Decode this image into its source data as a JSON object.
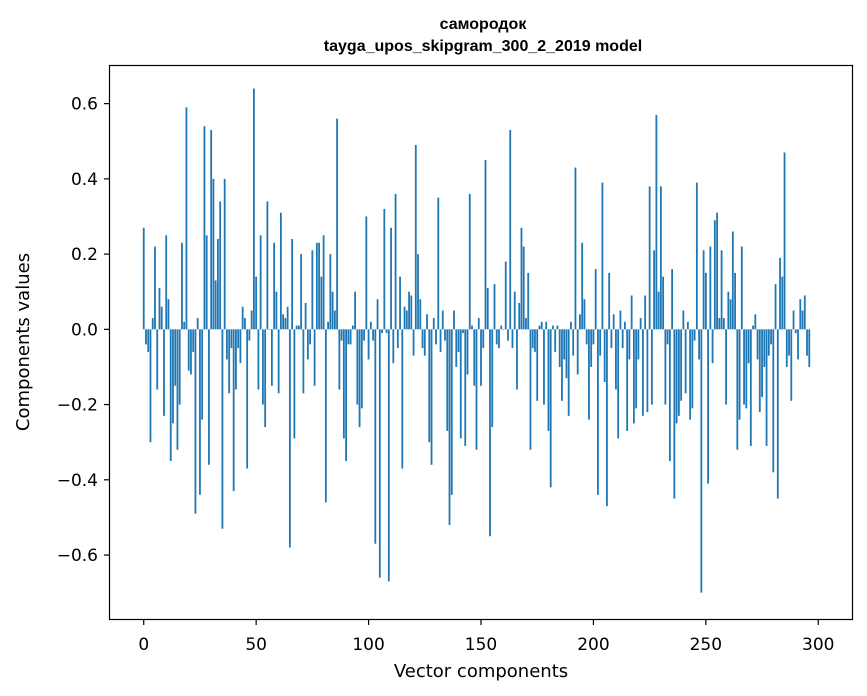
{
  "chart_data": {
    "type": "bar",
    "title": "самородок",
    "subtitle": "tayga_upos_skipgram_300_2_2019 model",
    "xlabel": "Vector components",
    "ylabel": "Components values",
    "xlim": [
      -15,
      315
    ],
    "ylim": [
      -0.77,
      0.7
    ],
    "xticks": [
      0,
      50,
      100,
      150,
      200,
      250,
      300
    ],
    "yticks": [
      -0.6,
      -0.4,
      -0.2,
      0.0,
      0.2,
      0.4,
      0.6
    ],
    "xtick_labels": [
      "0",
      "50",
      "100",
      "150",
      "200",
      "250",
      "300"
    ],
    "ytick_labels": [
      "−0.6",
      "−0.4",
      "−0.2",
      "0.0",
      "0.2",
      "0.4",
      "0.6"
    ],
    "grid": false,
    "bar_color": "#1f77b4",
    "values": [
      0.27,
      -0.04,
      -0.06,
      -0.3,
      0.03,
      0.22,
      -0.16,
      0.11,
      0.06,
      -0.23,
      0.25,
      0.08,
      -0.35,
      -0.25,
      -0.15,
      -0.32,
      -0.2,
      0.23,
      0.02,
      0.59,
      -0.11,
      -0.12,
      -0.06,
      -0.49,
      0.03,
      -0.44,
      -0.24,
      0.54,
      0.25,
      -0.36,
      0.53,
      0.4,
      0.13,
      0.24,
      0.34,
      -0.53,
      0.4,
      -0.08,
      -0.17,
      -0.05,
      -0.43,
      -0.16,
      -0.05,
      -0.09,
      0.06,
      0.03,
      -0.37,
      -0.03,
      0.05,
      0.64,
      0.14,
      -0.16,
      0.25,
      -0.2,
      -0.26,
      0.34,
      0.0,
      -0.15,
      0.23,
      0.1,
      -0.17,
      0.31,
      0.04,
      0.03,
      0.06,
      -0.58,
      0.24,
      -0.29,
      0.01,
      0.01,
      0.2,
      -0.17,
      0.07,
      -0.08,
      -0.04,
      0.21,
      -0.15,
      0.23,
      0.23,
      0.14,
      0.25,
      -0.46,
      0.02,
      0.2,
      0.1,
      0.05,
      0.56,
      -0.16,
      -0.03,
      -0.29,
      -0.35,
      -0.04,
      -0.04,
      0.01,
      0.1,
      -0.2,
      -0.26,
      -0.21,
      -0.03,
      0.3,
      -0.08,
      0.02,
      -0.03,
      -0.57,
      0.08,
      -0.66,
      -0.01,
      0.32,
      -0.01,
      -0.67,
      0.27,
      -0.09,
      0.36,
      -0.05,
      0.14,
      -0.37,
      0.06,
      0.05,
      0.1,
      0.09,
      -0.07,
      0.49,
      0.2,
      0.08,
      -0.05,
      -0.07,
      0.04,
      -0.3,
      -0.36,
      0.03,
      -0.04,
      0.35,
      -0.06,
      0.05,
      -0.03,
      -0.27,
      -0.52,
      -0.44,
      0.05,
      -0.1,
      -0.06,
      -0.29,
      -0.01,
      -0.31,
      -0.12,
      0.36,
      0.01,
      -0.15,
      -0.32,
      0.03,
      -0.15,
      -0.05,
      0.45,
      0.11,
      -0.55,
      -0.26,
      0.12,
      -0.04,
      -0.05,
      0.01,
      0.0,
      0.18,
      -0.03,
      0.53,
      -0.05,
      0.1,
      -0.16,
      0.07,
      0.27,
      0.22,
      0.03,
      0.15,
      -0.32,
      -0.05,
      -0.06,
      -0.19,
      0.01,
      0.02,
      -0.2,
      0.02,
      -0.27,
      -0.42,
      0.01,
      -0.06,
      0.01,
      -0.1,
      -0.19,
      -0.08,
      -0.13,
      -0.23,
      0.02,
      -0.07,
      0.43,
      -0.12,
      0.04,
      0.23,
      0.08,
      -0.04,
      -0.24,
      -0.1,
      -0.04,
      0.16,
      -0.44,
      -0.07,
      0.39,
      -0.14,
      -0.47,
      0.15,
      -0.05,
      0.04,
      -0.16,
      -0.29,
      0.05,
      -0.05,
      0.02,
      -0.27,
      -0.08,
      0.09,
      -0.25,
      -0.21,
      -0.08,
      0.03,
      -0.23,
      0.09,
      -0.22,
      0.38,
      -0.2,
      0.21,
      0.57,
      0.1,
      0.38,
      0.14,
      -0.2,
      -0.04,
      -0.35,
      0.16,
      -0.45,
      -0.25,
      -0.23,
      -0.19,
      0.05,
      -0.17,
      0.02,
      -0.24,
      -0.21,
      -0.03,
      0.39,
      -0.08,
      -0.7,
      0.21,
      0.15,
      -0.41,
      0.22,
      -0.09,
      0.29,
      0.31,
      0.03,
      0.21,
      0.03,
      -0.2,
      0.1,
      0.08,
      0.26,
      0.15,
      -0.32,
      -0.24,
      0.22,
      -0.2,
      -0.21,
      -0.09,
      -0.31,
      0.01,
      0.04,
      -0.08,
      -0.22,
      -0.18,
      -0.1,
      -0.31,
      -0.07,
      -0.04,
      -0.38,
      0.12,
      -0.45,
      0.19,
      0.14,
      0.47,
      -0.1,
      -0.07,
      -0.19,
      0.05,
      -0.01,
      -0.08,
      0.08,
      0.05,
      0.09,
      -0.07,
      -0.1
    ]
  }
}
